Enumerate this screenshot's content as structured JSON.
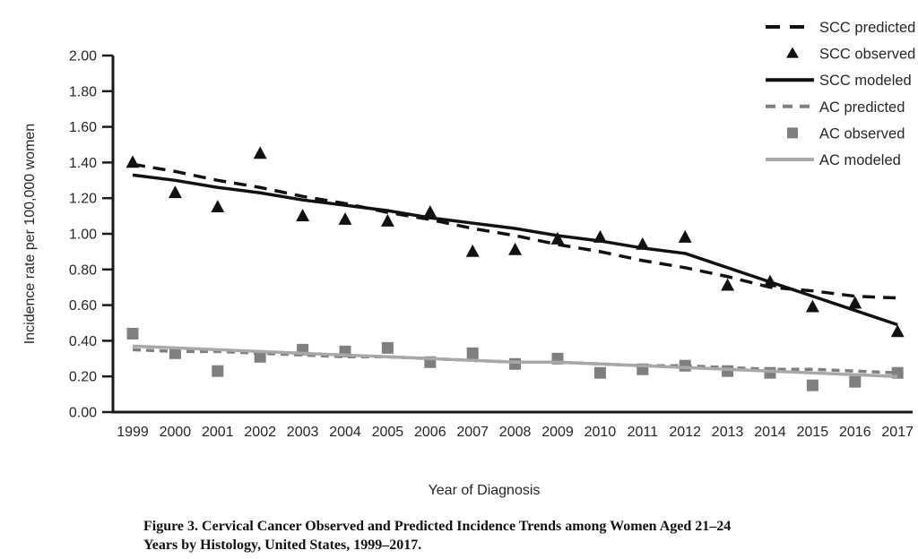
{
  "figure": {
    "caption_line1": "Figure 3. Cervical Cancer Observed and Predicted Incidence Trends among Women Aged 21–24",
    "caption_line2": "Years by Histology, United States, 1999–2017."
  },
  "colors": {
    "scc": "#111111",
    "ac": "#7f7f7f",
    "ac_modeled": "#a8a8a8",
    "axis": "#1a1a1a",
    "text": "#262626"
  },
  "chart_data": {
    "type": "line",
    "title": "",
    "xlabel": "Year of Diagnosis",
    "ylabel": "Incidence rate per 100,000 women",
    "x": [
      1999,
      2000,
      2001,
      2002,
      2003,
      2004,
      2005,
      2006,
      2007,
      2008,
      2009,
      2010,
      2011,
      2012,
      2013,
      2014,
      2015,
      2016,
      2017
    ],
    "ylim": [
      0.0,
      2.0
    ],
    "ytick_step": 0.2,
    "grid": false,
    "legend_position": "top-right",
    "series": [
      {
        "name": "SCC predicted",
        "style": "dashed",
        "dash": "14 9",
        "marker": null,
        "color": "#111111",
        "values": [
          1.39,
          1.35,
          1.3,
          1.26,
          1.21,
          1.17,
          1.12,
          1.08,
          1.03,
          0.99,
          0.94,
          0.9,
          0.85,
          0.81,
          0.76,
          0.7,
          0.68,
          0.65,
          0.64
        ]
      },
      {
        "name": "SCC observed",
        "style": "markers",
        "dash": null,
        "marker": "triangle",
        "color": "#111111",
        "values": [
          1.4,
          1.23,
          1.15,
          1.45,
          1.1,
          1.08,
          1.07,
          1.12,
          0.9,
          0.91,
          0.97,
          0.98,
          0.94,
          0.98,
          0.71,
          0.73,
          0.59,
          0.61,
          0.45
        ]
      },
      {
        "name": "SCC modeled",
        "style": "solid",
        "dash": null,
        "marker": null,
        "color": "#111111",
        "values": [
          1.33,
          1.3,
          1.26,
          1.23,
          1.19,
          1.16,
          1.13,
          1.09,
          1.06,
          1.03,
          0.99,
          0.96,
          0.92,
          0.89,
          0.81,
          0.73,
          0.65,
          0.57,
          0.49
        ]
      },
      {
        "name": "AC predicted",
        "style": "dashed",
        "dash": "9 6",
        "marker": null,
        "color": "#7f7f7f",
        "values": [
          0.35,
          0.34,
          0.34,
          0.33,
          0.32,
          0.31,
          0.31,
          0.3,
          0.29,
          0.28,
          0.28,
          0.27,
          0.26,
          0.26,
          0.25,
          0.24,
          0.24,
          0.23,
          0.22
        ]
      },
      {
        "name": "AC observed",
        "style": "markers",
        "dash": null,
        "marker": "square",
        "color": "#7f7f7f",
        "values": [
          0.44,
          0.33,
          0.23,
          0.31,
          0.35,
          0.34,
          0.36,
          0.28,
          0.33,
          0.27,
          0.3,
          0.22,
          0.24,
          0.26,
          0.23,
          0.22,
          0.15,
          0.17,
          0.22
        ]
      },
      {
        "name": "AC modeled",
        "style": "solid",
        "dash": null,
        "marker": null,
        "color": "#a8a8a8",
        "values": [
          0.37,
          0.36,
          0.35,
          0.34,
          0.33,
          0.32,
          0.31,
          0.3,
          0.29,
          0.28,
          0.28,
          0.27,
          0.26,
          0.25,
          0.24,
          0.23,
          0.22,
          0.21,
          0.2
        ]
      }
    ]
  }
}
